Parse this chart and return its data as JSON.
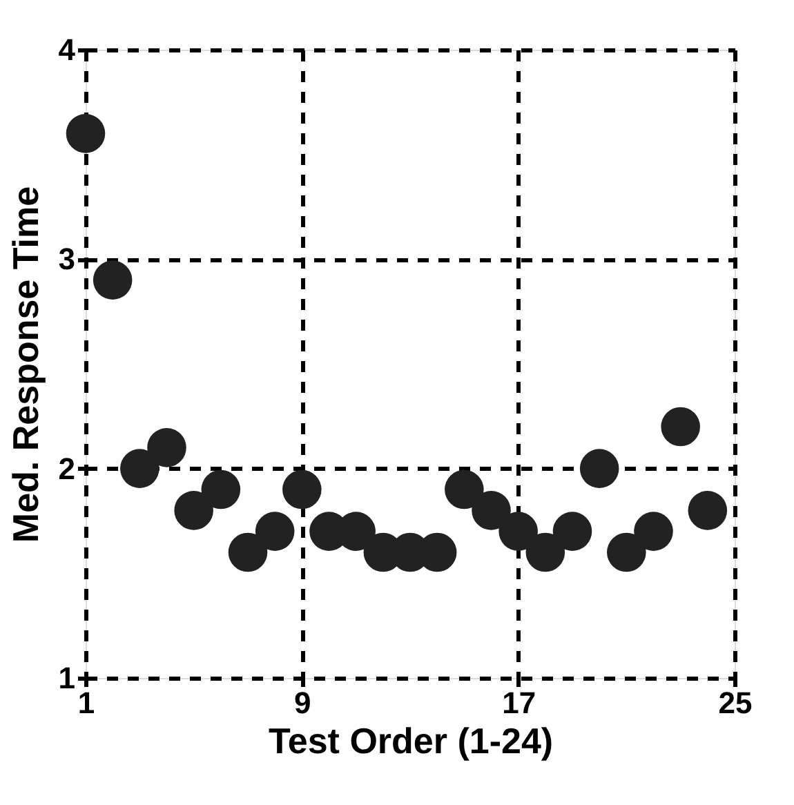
{
  "chart_data": {
    "type": "scatter",
    "xlabel": "Test Order (1-24)",
    "ylabel": "Med. Response Time",
    "x": [
      1,
      2,
      3,
      4,
      5,
      6,
      7,
      8,
      9,
      10,
      11,
      12,
      13,
      14,
      15,
      16,
      17,
      18,
      19,
      20,
      21,
      22,
      23,
      24
    ],
    "series": [
      {
        "color": "#222222",
        "values": [
          3.6,
          2.9,
          2.0,
          2.1,
          1.8,
          1.9,
          1.6,
          1.7,
          1.9,
          1.7,
          1.7,
          1.6,
          1.6,
          1.6,
          1.9,
          1.8,
          1.7,
          1.6,
          1.7,
          2.0,
          1.6,
          1.7,
          2.2,
          1.8
        ]
      }
    ],
    "xlim": [
      1,
      25
    ],
    "xticks": [
      1,
      9,
      17,
      25
    ],
    "ylim": [
      1,
      4
    ],
    "yticks": [
      1,
      2,
      3,
      4
    ],
    "grid": true,
    "marker": "circle",
    "legend": false
  }
}
